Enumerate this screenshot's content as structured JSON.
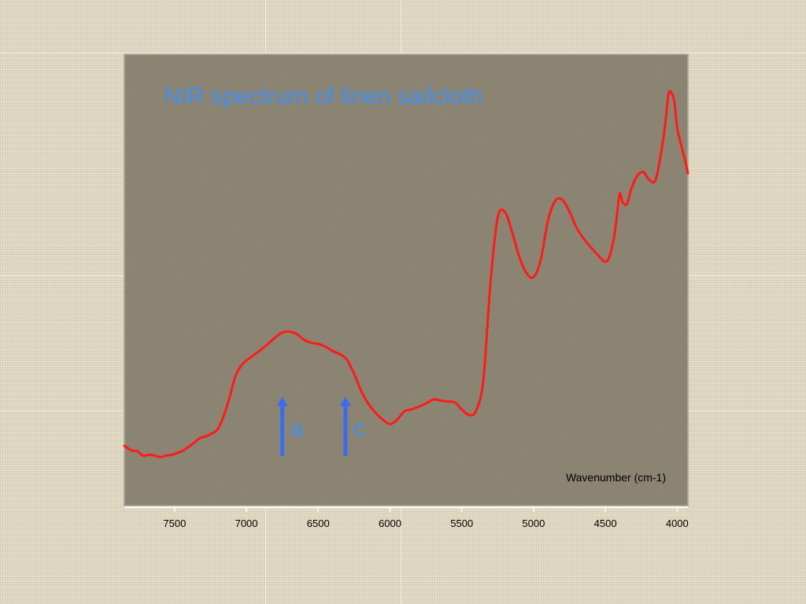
{
  "chart_data": {
    "type": "line",
    "title": "NIR spectrum of linen sailcloth",
    "xlabel": "Wavenumber (cm-1)",
    "ylabel": "",
    "x_reversed": true,
    "xlim": [
      7850,
      3925
    ],
    "ylim": [
      0,
      1
    ],
    "x_ticks": [
      7500,
      7000,
      6500,
      6000,
      5500,
      5000,
      4500,
      4000
    ],
    "x_tick_labels": [
      "7500",
      "7000",
      "6500",
      "6000",
      "5500",
      "5000",
      "4500",
      "4000"
    ],
    "grid": false,
    "series": [
      {
        "color": "#ff1a1a",
        "x": [
          7850,
          7800,
          7760,
          7720,
          7680,
          7640,
          7600,
          7560,
          7520,
          7480,
          7440,
          7400,
          7360,
          7320,
          7280,
          7240,
          7200,
          7160,
          7120,
          7080,
          7040,
          7000,
          6950,
          6900,
          6850,
          6800,
          6750,
          6700,
          6650,
          6600,
          6550,
          6500,
          6450,
          6400,
          6350,
          6300,
          6250,
          6200,
          6150,
          6100,
          6050,
          6000,
          5950,
          5900,
          5850,
          5800,
          5750,
          5700,
          5650,
          5600,
          5550,
          5500,
          5450,
          5400,
          5350,
          5300,
          5250,
          5200,
          5150,
          5100,
          5050,
          5000,
          4950,
          4900,
          4850,
          4800,
          4750,
          4700,
          4650,
          4600,
          4550,
          4500,
          4470,
          4440,
          4420,
          4400,
          4380,
          4350,
          4320,
          4290,
          4260,
          4230,
          4200,
          4150,
          4100,
          4080,
          4060,
          4040,
          4020,
          4000,
          3975,
          3950,
          3925
        ],
        "y": [
          0.106,
          0.094,
          0.092,
          0.081,
          0.083,
          0.081,
          0.077,
          0.081,
          0.083,
          0.088,
          0.094,
          0.104,
          0.115,
          0.126,
          0.13,
          0.137,
          0.148,
          0.18,
          0.225,
          0.278,
          0.307,
          0.322,
          0.335,
          0.349,
          0.364,
          0.38,
          0.393,
          0.395,
          0.389,
          0.375,
          0.367,
          0.364,
          0.357,
          0.346,
          0.338,
          0.324,
          0.288,
          0.244,
          0.212,
          0.189,
          0.172,
          0.161,
          0.172,
          0.193,
          0.198,
          0.205,
          0.213,
          0.223,
          0.221,
          0.218,
          0.216,
          0.198,
          0.184,
          0.195,
          0.273,
          0.52,
          0.684,
          0.698,
          0.648,
          0.585,
          0.544,
          0.533,
          0.577,
          0.676,
          0.726,
          0.729,
          0.699,
          0.658,
          0.63,
          0.608,
          0.588,
          0.572,
          0.587,
          0.634,
          0.688,
          0.745,
          0.723,
          0.718,
          0.756,
          0.782,
          0.797,
          0.798,
          0.782,
          0.78,
          0.875,
          0.932,
          0.998,
          1.0,
          0.978,
          0.912,
          0.871,
          0.837,
          0.796
        ]
      }
    ],
    "annotations": [
      {
        "label": "a",
        "x": 6750,
        "y_from": 0.08,
        "y_to": 0.23
      },
      {
        "label": "c",
        "x": 6310,
        "y_from": 0.08,
        "y_to": 0.23
      }
    ]
  },
  "colors": {
    "plot_bg": "#938b79",
    "line": "#ff1a1a",
    "title": "#3f8ef0",
    "arrow": "#3a6cf0",
    "annotation_text": "#3f8ef0"
  }
}
